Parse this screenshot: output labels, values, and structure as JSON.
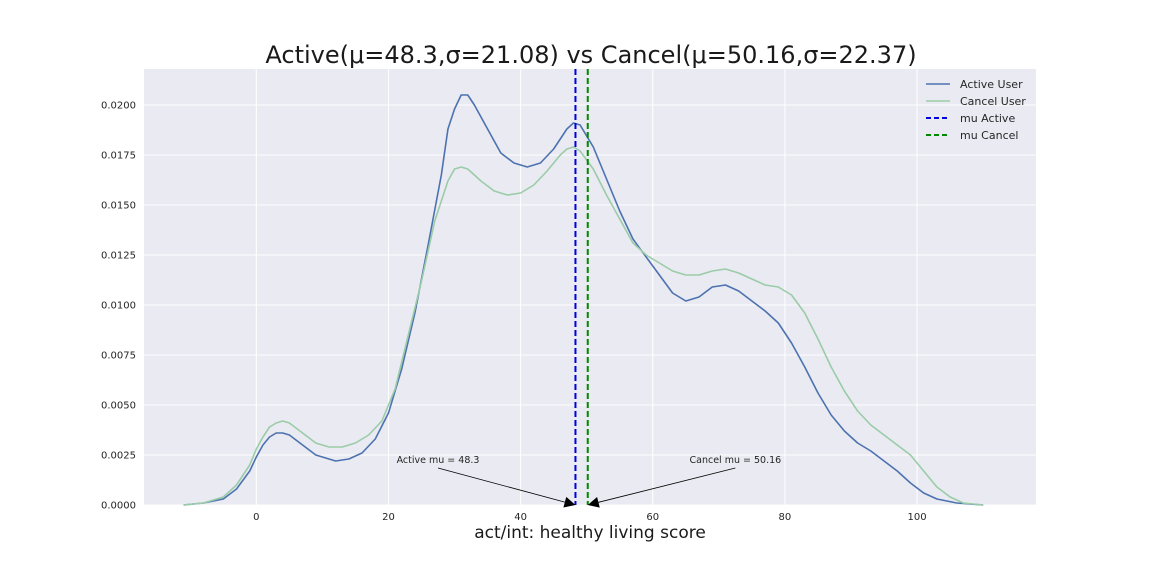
{
  "chart_data": {
    "type": "line",
    "title": "Active(μ=48.3,σ=21.08) vs Cancel(μ=50.16,σ=22.37)",
    "xlabel": "act/int: healthy living score",
    "ylabel": "",
    "xlim": [
      -17,
      118
    ],
    "ylim": [
      0,
      0.0218
    ],
    "grid": true,
    "legend_position": "top-right",
    "x_ticks": [
      0,
      20,
      40,
      60,
      80,
      100
    ],
    "y_ticks": [
      0.0,
      0.0025,
      0.005,
      0.0075,
      0.01,
      0.0125,
      0.015,
      0.0175,
      0.02
    ],
    "x_tick_labels": [
      "0",
      "20",
      "40",
      "60",
      "80",
      "100"
    ],
    "y_tick_labels": [
      "0.0000",
      "0.0025",
      "0.0050",
      "0.0075",
      "0.0100",
      "0.0125",
      "0.0150",
      "0.0175",
      "0.0200"
    ],
    "series": [
      {
        "name": "Active User",
        "color": "#4c72b0",
        "style": "solid",
        "points": [
          [
            -11,
            0
          ],
          [
            -8,
            0.0001
          ],
          [
            -5,
            0.0003
          ],
          [
            -3,
            0.0008
          ],
          [
            -1,
            0.0017
          ],
          [
            0,
            0.0024
          ],
          [
            1,
            0.003
          ],
          [
            2,
            0.0034
          ],
          [
            3,
            0.0036
          ],
          [
            4,
            0.0036
          ],
          [
            5,
            0.0035
          ],
          [
            7,
            0.003
          ],
          [
            9,
            0.0025
          ],
          [
            11,
            0.0023
          ],
          [
            12,
            0.0022
          ],
          [
            14,
            0.0023
          ],
          [
            16,
            0.0026
          ],
          [
            18,
            0.0033
          ],
          [
            20,
            0.0046
          ],
          [
            22,
            0.0068
          ],
          [
            24,
            0.0096
          ],
          [
            26,
            0.013
          ],
          [
            28,
            0.0165
          ],
          [
            29,
            0.0188
          ],
          [
            30,
            0.0198
          ],
          [
            31,
            0.0205
          ],
          [
            32,
            0.0205
          ],
          [
            33,
            0.02
          ],
          [
            35,
            0.0188
          ],
          [
            37,
            0.0176
          ],
          [
            39,
            0.0171
          ],
          [
            41,
            0.0169
          ],
          [
            43,
            0.0171
          ],
          [
            45,
            0.0178
          ],
          [
            47,
            0.0188
          ],
          [
            48,
            0.0191
          ],
          [
            49,
            0.019
          ],
          [
            51,
            0.0179
          ],
          [
            53,
            0.0163
          ],
          [
            55,
            0.0147
          ],
          [
            57,
            0.0133
          ],
          [
            59,
            0.0124
          ],
          [
            61,
            0.0115
          ],
          [
            63,
            0.0106
          ],
          [
            65,
            0.0102
          ],
          [
            67,
            0.0104
          ],
          [
            69,
            0.0109
          ],
          [
            71,
            0.011
          ],
          [
            73,
            0.0107
          ],
          [
            75,
            0.0102
          ],
          [
            77,
            0.0097
          ],
          [
            79,
            0.0091
          ],
          [
            81,
            0.0081
          ],
          [
            83,
            0.0069
          ],
          [
            85,
            0.0056
          ],
          [
            87,
            0.0045
          ],
          [
            89,
            0.0037
          ],
          [
            91,
            0.0031
          ],
          [
            93,
            0.0027
          ],
          [
            95,
            0.0022
          ],
          [
            97,
            0.0017
          ],
          [
            99,
            0.0011
          ],
          [
            101,
            0.0006
          ],
          [
            103,
            0.0003
          ],
          [
            106,
            0.0001
          ],
          [
            110,
            0
          ]
        ]
      },
      {
        "name": "Cancel User",
        "color": "#9acca8",
        "style": "solid",
        "points": [
          [
            -11,
            0
          ],
          [
            -8,
            0.0001
          ],
          [
            -5,
            0.0004
          ],
          [
            -3,
            0.001
          ],
          [
            -1,
            0.002
          ],
          [
            0,
            0.0028
          ],
          [
            1,
            0.0034
          ],
          [
            2,
            0.0039
          ],
          [
            3,
            0.0041
          ],
          [
            4,
            0.0042
          ],
          [
            5,
            0.0041
          ],
          [
            7,
            0.0036
          ],
          [
            9,
            0.0031
          ],
          [
            11,
            0.0029
          ],
          [
            13,
            0.0029
          ],
          [
            15,
            0.0031
          ],
          [
            17,
            0.0035
          ],
          [
            19,
            0.0042
          ],
          [
            21,
            0.0058
          ],
          [
            23,
            0.0085
          ],
          [
            25,
            0.0112
          ],
          [
            27,
            0.0142
          ],
          [
            29,
            0.0162
          ],
          [
            30,
            0.0168
          ],
          [
            31,
            0.0169
          ],
          [
            32,
            0.0168
          ],
          [
            34,
            0.0162
          ],
          [
            36,
            0.0157
          ],
          [
            38,
            0.0155
          ],
          [
            40,
            0.0156
          ],
          [
            42,
            0.016
          ],
          [
            44,
            0.0167
          ],
          [
            46,
            0.0175
          ],
          [
            47,
            0.0178
          ],
          [
            48,
            0.0179
          ],
          [
            49,
            0.0177
          ],
          [
            51,
            0.0168
          ],
          [
            53,
            0.0155
          ],
          [
            55,
            0.0143
          ],
          [
            57,
            0.0131
          ],
          [
            59,
            0.0125
          ],
          [
            61,
            0.0121
          ],
          [
            63,
            0.0117
          ],
          [
            65,
            0.0115
          ],
          [
            67,
            0.0115
          ],
          [
            69,
            0.0117
          ],
          [
            71,
            0.0118
          ],
          [
            73,
            0.0116
          ],
          [
            75,
            0.0113
          ],
          [
            77,
            0.011
          ],
          [
            79,
            0.0109
          ],
          [
            81,
            0.0105
          ],
          [
            83,
            0.0096
          ],
          [
            85,
            0.0083
          ],
          [
            87,
            0.0069
          ],
          [
            89,
            0.0057
          ],
          [
            91,
            0.0047
          ],
          [
            93,
            0.004
          ],
          [
            95,
            0.0035
          ],
          [
            97,
            0.003
          ],
          [
            99,
            0.0025
          ],
          [
            101,
            0.0017
          ],
          [
            103,
            0.0009
          ],
          [
            105,
            0.0004
          ],
          [
            107,
            0.0001
          ],
          [
            110,
            0
          ]
        ]
      },
      {
        "name": "mu Active",
        "color": "#0000dd",
        "style": "dashed",
        "vline": 48.3
      },
      {
        "name": "mu Cancel",
        "color": "#008800",
        "style": "dashed",
        "vline": 50.16
      }
    ],
    "annotations": [
      {
        "text": "Active mu = 48.3",
        "x": 48.3,
        "y": 0,
        "text_x": 27.5,
        "text_y": 0.0021
      },
      {
        "text": "Cancel mu = 50.16",
        "x": 50.16,
        "y": 0,
        "text_x": 72.5,
        "text_y": 0.0021
      }
    ]
  }
}
